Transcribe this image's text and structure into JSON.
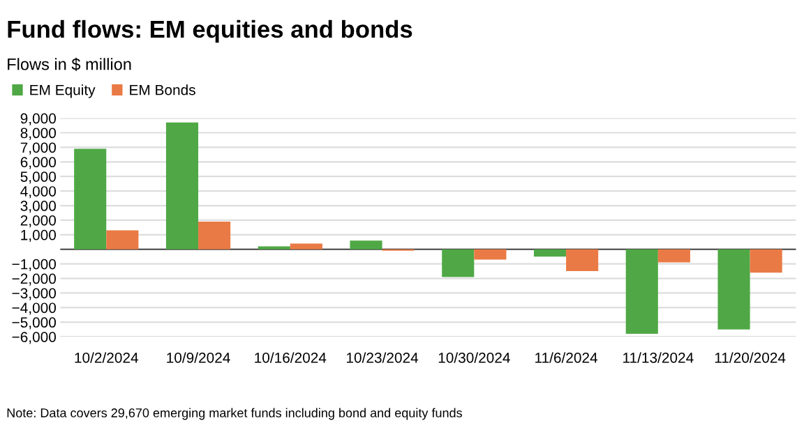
{
  "chart_data": {
    "type": "bar",
    "title": "Fund flows: EM equities and bonds",
    "subtitle": "Flows in $ million",
    "categories": [
      "10/2/2024",
      "10/9/2024",
      "10/16/2024",
      "10/23/2024",
      "10/30/2024",
      "11/6/2024",
      "11/13/2024",
      "11/20/2024"
    ],
    "series": [
      {
        "name": "EM Equity",
        "color": "#4fa845",
        "values": [
          6900,
          8700,
          200,
          600,
          -1900,
          -500,
          -5800,
          -5500
        ]
      },
      {
        "name": "EM Bonds",
        "color": "#ea7a45",
        "values": [
          1300,
          1900,
          400,
          -100,
          -700,
          -1500,
          -900,
          -1600
        ]
      }
    ],
    "ylim": [
      -6000,
      9000
    ],
    "yticks": [
      {
        "value": -6000,
        "label": "−6,000"
      },
      {
        "value": -5000,
        "label": "−5,000"
      },
      {
        "value": -4000,
        "label": "−4,000"
      },
      {
        "value": -3000,
        "label": "−3,000"
      },
      {
        "value": -2000,
        "label": "−2,000"
      },
      {
        "value": -1000,
        "label": "−1,000"
      },
      {
        "value": 0,
        "label": null
      },
      {
        "value": 1000,
        "label": "1,000"
      },
      {
        "value": 2000,
        "label": "2,000"
      },
      {
        "value": 3000,
        "label": "3,000"
      },
      {
        "value": 4000,
        "label": "4,000"
      },
      {
        "value": 5000,
        "label": "5,000"
      },
      {
        "value": 6000,
        "label": "6,000"
      },
      {
        "value": 7000,
        "label": "7,000"
      },
      {
        "value": 8000,
        "label": "8,000"
      },
      {
        "value": 9000,
        "label": "9,000"
      }
    ],
    "grid": "y",
    "legend": "top left",
    "annotations": [
      "Note: Data covers 29,670 emerging market funds including bond and equity funds"
    ]
  }
}
